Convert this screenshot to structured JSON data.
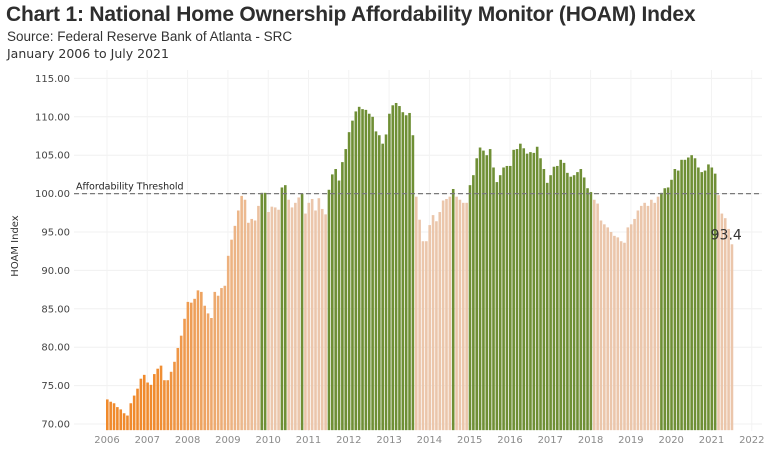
{
  "header": {
    "title": "Chart 1: National Home Ownership Affordability Monitor (HOAM) Index",
    "source": "Source: Federal Reserve Bank of Atlanta - SRC",
    "date_range": "January 2006 to July 2021"
  },
  "chart_data": {
    "type": "bar",
    "title": "Chart 1: National Home Ownership Affordability Monitor (HOAM) Index",
    "subtitle": "Source: Federal Reserve Bank of Atlanta - SRC",
    "xlabel": "",
    "ylabel": "HOAM Index",
    "ylim": [
      69,
      116
    ],
    "xlim": [
      2005.25,
      2022.1
    ],
    "grid": true,
    "y_ticks": [
      "70.00",
      "75.00",
      "80.00",
      "85.00",
      "90.00",
      "95.00",
      "100.00",
      "105.00",
      "110.00",
      "115.00"
    ],
    "y_tick_values": [
      70,
      75,
      80,
      85,
      90,
      95,
      100,
      105,
      110,
      115
    ],
    "x_ticks": [
      "2006",
      "2007",
      "2008",
      "2009",
      "2010",
      "2011",
      "2012",
      "2013",
      "2014",
      "2015",
      "2016",
      "2017",
      "2018",
      "2019",
      "2020",
      "2021",
      "2022"
    ],
    "start": "2006-01",
    "frequency": "monthly",
    "threshold": {
      "value": 100,
      "label": "Affordability Threshold",
      "color": "#7a7a7a"
    },
    "last_value_label": "93.4",
    "colors": {
      "affordable": "#6f8f35",
      "unaffordable_dark": "#f08a2c",
      "unaffordable_light": "#ebc6ab"
    },
    "values": [
      73.2,
      72.9,
      72.7,
      72.2,
      71.9,
      71.4,
      71.1,
      72.7,
      73.7,
      74.6,
      75.9,
      76.4,
      75.4,
      75.1,
      76.5,
      77.2,
      77.6,
      75.7,
      75.7,
      76.8,
      78.1,
      79.9,
      81.5,
      83.7,
      85.9,
      85.8,
      86.3,
      87.4,
      87.2,
      85.4,
      84.4,
      83.8,
      87.2,
      86.7,
      87.7,
      88.0,
      91.9,
      94.0,
      95.8,
      97.8,
      99.7,
      99.2,
      96.2,
      96.7,
      96.5,
      98.4,
      100.1,
      100.1,
      97.6,
      98.3,
      98.2,
      97.9,
      100.8,
      101.1,
      99.2,
      98.2,
      98.8,
      99.5,
      100.0,
      97.4,
      98.8,
      99.3,
      97.8,
      99.4,
      98.0,
      97.3,
      100.5,
      102.5,
      103.2,
      101.7,
      104.1,
      105.8,
      108.0,
      109.5,
      110.7,
      111.3,
      111.0,
      110.9,
      110.4,
      110.0,
      108.1,
      107.6,
      106.5,
      107.7,
      110.4,
      111.5,
      111.8,
      111.4,
      110.6,
      110.2,
      110.5,
      107.6,
      99.6,
      96.6,
      93.8,
      93.8,
      95.9,
      97.2,
      96.4,
      97.6,
      99.1,
      99.3,
      99.6,
      100.6,
      99.6,
      99.2,
      98.8,
      98.8,
      101.1,
      102.4,
      104.6,
      106.0,
      105.6,
      105.0,
      105.8,
      103.4,
      101.5,
      102.4,
      103.4,
      103.6,
      103.6,
      105.7,
      105.8,
      106.5,
      105.9,
      105.2,
      105.4,
      105.3,
      106.1,
      104.6,
      103.2,
      101.4,
      102.4,
      103.5,
      103.6,
      104.4,
      104.0,
      102.7,
      102.2,
      102.4,
      102.8,
      103.2,
      102.1,
      100.7,
      100.2,
      99.2,
      98.7,
      96.5,
      96.0,
      95.6,
      95.0,
      94.5,
      94.3,
      93.8,
      93.6,
      95.6,
      96.0,
      96.7,
      97.8,
      98.4,
      98.8,
      98.4,
      99.2,
      98.8,
      99.6,
      100.1,
      100.7,
      100.8,
      101.8,
      103.2,
      103.0,
      104.4,
      104.4,
      104.7,
      105.0,
      104.6,
      103.4,
      102.8,
      103.0,
      103.8,
      103.4,
      102.6,
      99.8,
      97.4,
      96.8,
      95.4,
      93.4
    ]
  }
}
